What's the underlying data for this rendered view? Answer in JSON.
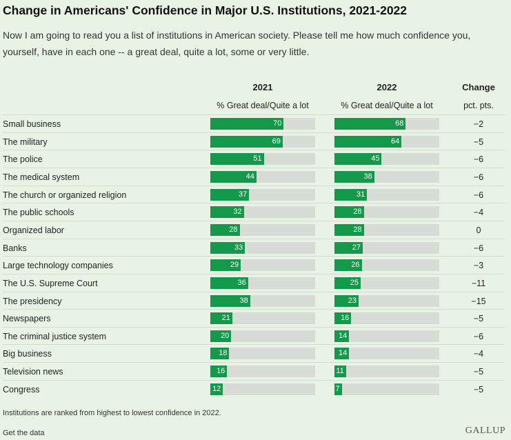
{
  "title": "Change in Americans' Confidence in Major U.S. Institutions, 2021-2022",
  "subtitle": "Now I am going to read you a list of institutions in American society. Please tell me how much confidence you, yourself, have in each one -- a great deal, quite a lot, some or very little.",
  "columns": {
    "year1": "2021",
    "year2": "2022",
    "measure": "% Great deal/Quite a lot",
    "change": "Change",
    "change_unit": "pct. pts."
  },
  "chart_data": {
    "type": "bar",
    "orientation": "horizontal",
    "xlim": [
      0,
      100
    ],
    "categories": [
      "Small business",
      "The military",
      "The police",
      "The medical system",
      "The church or organized religion",
      "The public schools",
      "Organized labor",
      "Banks",
      "Large technology companies",
      "The U.S. Supreme Court",
      "The presidency",
      "Newspapers",
      "The criminal justice system",
      "Big business",
      "Television news",
      "Congress"
    ],
    "series": [
      {
        "name": "2021",
        "values": [
          70,
          69,
          51,
          44,
          37,
          32,
          28,
          33,
          29,
          36,
          38,
          21,
          20,
          18,
          16,
          12
        ]
      },
      {
        "name": "2022",
        "values": [
          68,
          64,
          45,
          38,
          31,
          28,
          28,
          27,
          26,
          25,
          23,
          16,
          14,
          14,
          11,
          7
        ]
      }
    ],
    "change": [
      "−2",
      "−5",
      "−6",
      "−6",
      "−6",
      "−4",
      "0",
      "−6",
      "−3",
      "−11",
      "−15",
      "−5",
      "−6",
      "−4",
      "−5",
      "−5"
    ],
    "bar_color": "#14984a",
    "track_color": "#d8dcd6"
  },
  "footnote": "Institutions are ranked from highest to lowest confidence in 2022.",
  "get_data": "Get the data",
  "logo": "GALLUP"
}
